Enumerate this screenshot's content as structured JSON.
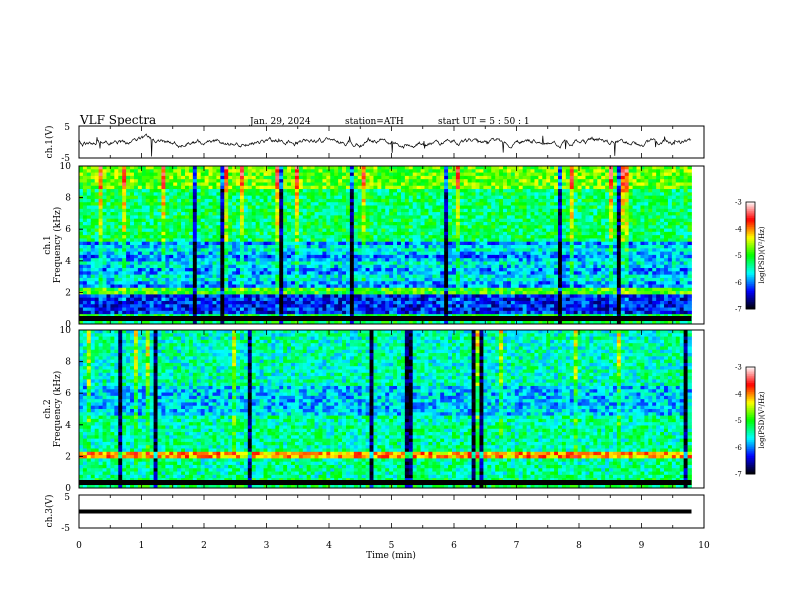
{
  "header": {
    "title": "VLF  Spectra",
    "date": "Jan. 29, 2024",
    "station": "station=ATH",
    "start": "start  UT  =    5  : 50 : 1"
  },
  "chart_data": [
    {
      "type": "line",
      "panel": "ch1-waveform",
      "ylabel": "ch.1(V)",
      "ylim": [
        -5,
        5
      ],
      "yticks": [
        "5",
        "-5"
      ],
      "xlim": [
        0,
        10
      ]
    },
    {
      "type": "heatmap",
      "panel": "ch1-spectrogram",
      "ylabel": "ch.1\nFrequency  (kHz)",
      "ylim": [
        0,
        10
      ],
      "yticks": [
        "0",
        "2",
        "4",
        "6",
        "8",
        "10"
      ],
      "xlim": [
        0,
        10
      ],
      "colorbar": {
        "label": "log(PSD)(V²/Hz)",
        "range": [
          -7,
          -3
        ],
        "ticks": [
          "-3",
          "-4",
          "-5",
          "-6",
          "-7"
        ]
      }
    },
    {
      "type": "heatmap",
      "panel": "ch2-spectrogram",
      "ylabel": "ch.2\nFrequency  (kHz)",
      "ylim": [
        0,
        10
      ],
      "yticks": [
        "0",
        "2",
        "4",
        "6",
        "8",
        "10"
      ],
      "xlim": [
        0,
        10
      ],
      "colorbar": {
        "label": "log(PSD)(V²/Hz)",
        "range": [
          -7,
          -3
        ],
        "ticks": [
          "-3",
          "-4",
          "-5",
          "-6",
          "-7"
        ]
      }
    },
    {
      "type": "line",
      "panel": "ch3-waveform",
      "ylabel": "ch.3(V)",
      "ylim": [
        -5,
        5
      ],
      "yticks": [
        "5",
        "-5"
      ],
      "xlim": [
        0,
        10
      ],
      "xlabel": "Time  (min)",
      "xticks": [
        "0",
        "1",
        "2",
        "3",
        "4",
        "5",
        "6",
        "7",
        "8",
        "9",
        "10"
      ]
    }
  ],
  "colors": {
    "axis": "#000000",
    "colormap": [
      "#000000",
      "#0000ff",
      "#00ffff",
      "#00ff00",
      "#ffff00",
      "#ff0000",
      "#ffffff"
    ]
  }
}
